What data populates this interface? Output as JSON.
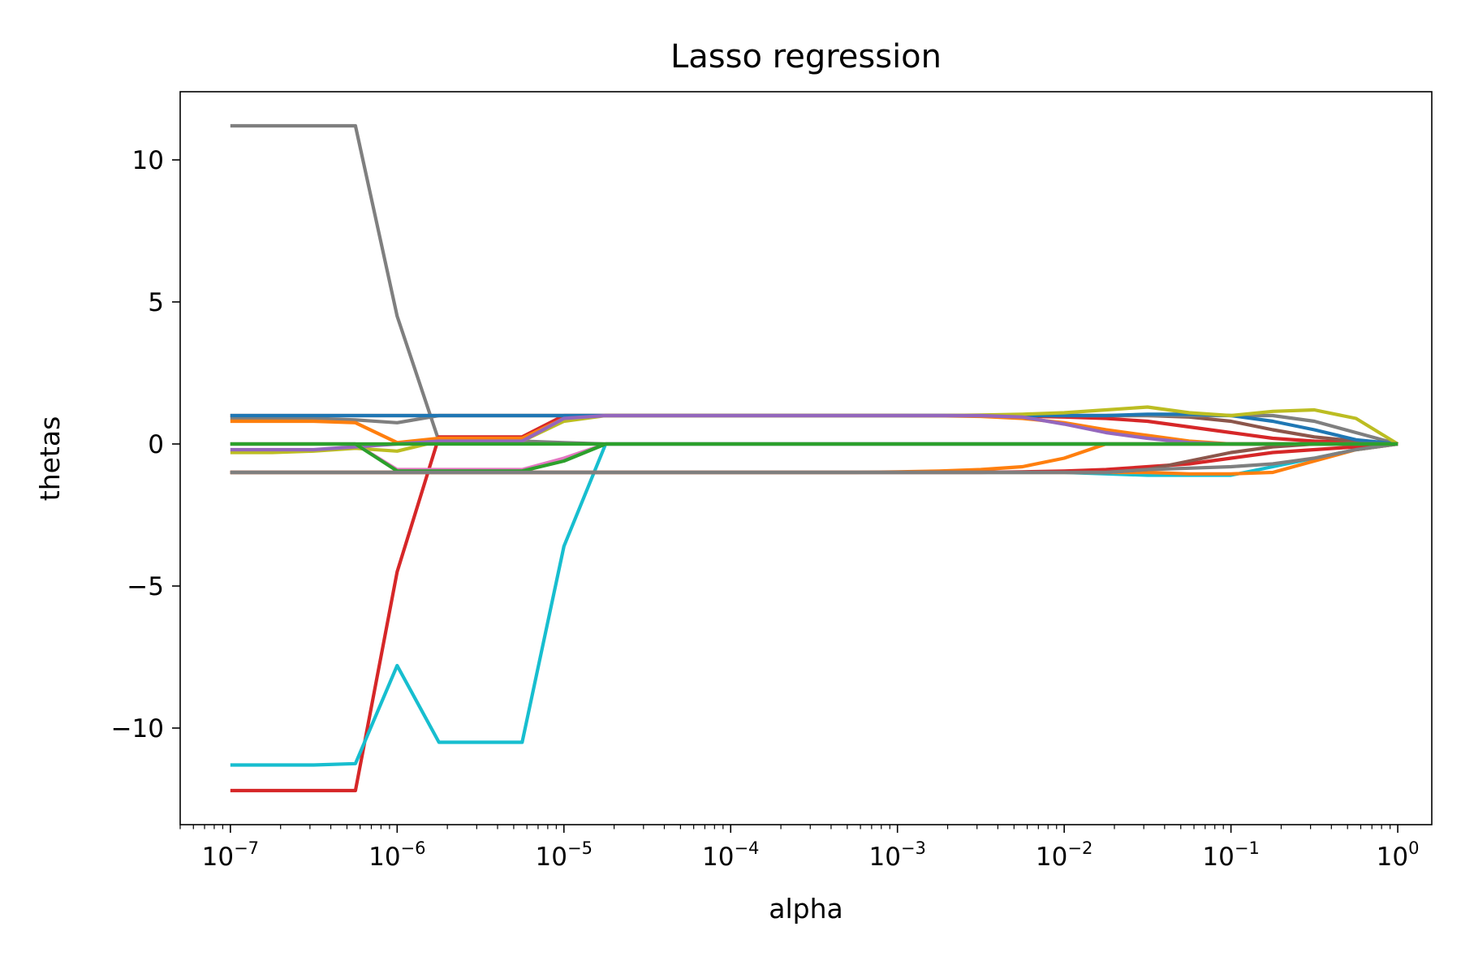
{
  "chart_data": {
    "type": "line",
    "title": "Lasso regression",
    "xlabel": "alpha",
    "ylabel": "thetas",
    "xscale": "log",
    "xlim": [
      5e-08,
      1.6
    ],
    "ylim": [
      -13.4,
      12.4
    ],
    "grid": false,
    "x_ticks": [
      {
        "value": 1e-07,
        "base": "10",
        "exp": "−7"
      },
      {
        "value": 1e-06,
        "base": "10",
        "exp": "−6"
      },
      {
        "value": 1e-05,
        "base": "10",
        "exp": "−5"
      },
      {
        "value": 0.0001,
        "base": "10",
        "exp": "−4"
      },
      {
        "value": 0.001,
        "base": "10",
        "exp": "−3"
      },
      {
        "value": 0.01,
        "base": "10",
        "exp": "−2"
      },
      {
        "value": 0.1,
        "base": "10",
        "exp": "−1"
      },
      {
        "value": 1,
        "base": "10",
        "exp": "0"
      }
    ],
    "y_ticks": [
      {
        "value": 10,
        "label": "10"
      },
      {
        "value": 5,
        "label": "5"
      },
      {
        "value": 0,
        "label": "0"
      },
      {
        "value": -5,
        "label": "−5"
      },
      {
        "value": -10,
        "label": "−10"
      }
    ],
    "x": [
      1e-07,
      1.78e-07,
      3.16e-07,
      5.62e-07,
      1e-06,
      1.78e-06,
      3.16e-06,
      5.62e-06,
      1e-05,
      1.78e-05,
      3.16e-05,
      5.62e-05,
      0.0001,
      0.000178,
      0.000316,
      0.000562,
      0.001,
      0.00178,
      0.00316,
      0.00562,
      0.01,
      0.0178,
      0.0316,
      0.0562,
      0.1,
      0.178,
      0.316,
      0.562,
      1
    ],
    "series": [
      {
        "color": "#7f7f7f",
        "values": [
          11.2,
          11.2,
          11.2,
          11.2,
          4.5,
          0.1,
          0.1,
          0.1,
          0.05,
          0,
          0,
          0,
          0,
          0,
          0,
          0,
          0,
          0,
          0,
          0,
          0,
          0,
          0,
          0,
          0,
          0,
          0,
          0,
          0
        ]
      },
      {
        "color": "#d62728",
        "values": [
          -12.2,
          -12.2,
          -12.2,
          -12.2,
          -4.5,
          0.25,
          0.25,
          0.25,
          1.0,
          1.0,
          1.0,
          1.0,
          1.0,
          1.0,
          1.0,
          1.0,
          1.0,
          1.0,
          1.0,
          0.98,
          0.95,
          0.9,
          0.8,
          0.6,
          0.4,
          0.2,
          0.1,
          0.05,
          0
        ]
      },
      {
        "color": "#17becf",
        "values": [
          -11.3,
          -11.3,
          -11.3,
          -11.25,
          -7.8,
          -10.5,
          -10.5,
          -10.5,
          -3.6,
          0,
          0,
          0,
          0,
          0,
          0,
          0,
          0,
          0,
          0,
          0,
          0,
          0,
          0,
          0,
          0,
          0,
          0,
          0,
          0
        ]
      },
      {
        "color": "#8c564b",
        "values": [
          1.0,
          1.0,
          1.0,
          1.0,
          1.0,
          1.0,
          1.0,
          1.0,
          1.0,
          1.0,
          1.0,
          1.0,
          1.0,
          1.0,
          1.0,
          1.0,
          1.0,
          1.0,
          1.0,
          1.0,
          1.0,
          1.0,
          1.0,
          0.95,
          0.8,
          0.5,
          0.25,
          0.1,
          0
        ]
      },
      {
        "color": "#7f7f7f",
        "values": [
          0.9,
          0.9,
          0.9,
          0.85,
          0.75,
          1.0,
          1.0,
          1.0,
          1.0,
          1.0,
          1.0,
          1.0,
          1.0,
          1.0,
          1.0,
          1.0,
          1.0,
          1.0,
          1.0,
          1.0,
          1.0,
          1.0,
          1.0,
          1.0,
          1.0,
          1.0,
          0.8,
          0.4,
          0
        ]
      },
      {
        "color": "#ff7f0e",
        "values": [
          0.8,
          0.8,
          0.8,
          0.75,
          0.05,
          0.2,
          0.2,
          0.2,
          0.9,
          1.0,
          1.0,
          1.0,
          1.0,
          1.0,
          1.0,
          1.0,
          1.0,
          0.99,
          0.97,
          0.9,
          0.75,
          0.5,
          0.3,
          0.1,
          0,
          0,
          0,
          0,
          0
        ]
      },
      {
        "color": "#1f77b4",
        "values": [
          1.0,
          1.0,
          1.0,
          1.0,
          1.0,
          1.0,
          1.0,
          1.0,
          1.0,
          1.0,
          1.0,
          1.0,
          1.0,
          1.0,
          1.0,
          1.0,
          1.0,
          1.0,
          1.0,
          1.0,
          1.0,
          1.0,
          1.05,
          1.05,
          1.0,
          0.8,
          0.5,
          0.15,
          0
        ]
      },
      {
        "color": "#bcbd22",
        "values": [
          -0.3,
          -0.3,
          -0.25,
          -0.15,
          -0.25,
          0.1,
          0.1,
          0.1,
          0.8,
          1.0,
          1.0,
          1.0,
          1.0,
          1.0,
          1.0,
          1.0,
          1.0,
          1.0,
          1.02,
          1.05,
          1.1,
          1.2,
          1.3,
          1.1,
          1.0,
          1.15,
          1.2,
          0.9,
          0
        ]
      },
      {
        "color": "#9467bd",
        "values": [
          -0.2,
          -0.2,
          -0.2,
          -0.1,
          0.0,
          0.1,
          0.1,
          0.1,
          0.9,
          1.0,
          1.0,
          1.0,
          1.0,
          1.0,
          1.0,
          1.0,
          1.0,
          1.0,
          1.0,
          0.95,
          0.7,
          0.4,
          0.2,
          0.05,
          0,
          0,
          0,
          0,
          0
        ]
      },
      {
        "color": "#ff7f0e",
        "values": [
          -1.0,
          -1.0,
          -1.0,
          -1.0,
          -1.0,
          -1.0,
          -1.0,
          -1.0,
          -1.0,
          -1.0,
          -1.0,
          -1.0,
          -1.0,
          -1.0,
          -1.0,
          -1.0,
          -0.98,
          -0.95,
          -0.9,
          -0.8,
          -0.5,
          0.0,
          0.0,
          0,
          0,
          0,
          0,
          0,
          0
        ]
      },
      {
        "color": "#17becf",
        "values": [
          -1.0,
          -1.0,
          -1.0,
          -1.0,
          -1.0,
          -1.0,
          -1.0,
          -1.0,
          -1.0,
          -1.0,
          -1.0,
          -1.0,
          -1.0,
          -1.0,
          -1.0,
          -1.0,
          -1.0,
          -1.0,
          -1.0,
          -1.0,
          -1.0,
          -1.05,
          -1.1,
          -1.1,
          -1.1,
          -0.8,
          -0.5,
          -0.2,
          0
        ]
      },
      {
        "color": "#ff7f0e",
        "values": [
          -1.0,
          -1.0,
          -1.0,
          -1.0,
          -1.0,
          -1.0,
          -1.0,
          -1.0,
          -1.0,
          -1.0,
          -1.0,
          -1.0,
          -1.0,
          -1.0,
          -1.0,
          -1.0,
          -1.0,
          -1.0,
          -1.0,
          -1.0,
          -1.0,
          -1.0,
          -1.0,
          -1.05,
          -1.05,
          -1.0,
          -0.6,
          -0.2,
          0
        ]
      },
      {
        "color": "#d62728",
        "values": [
          -1.0,
          -1.0,
          -1.0,
          -1.0,
          -1.0,
          -1.0,
          -1.0,
          -1.0,
          -1.0,
          -1.0,
          -1.0,
          -1.0,
          -1.0,
          -1.0,
          -1.0,
          -1.0,
          -1.0,
          -1.0,
          -1.0,
          -0.98,
          -0.95,
          -0.9,
          -0.8,
          -0.7,
          -0.5,
          -0.3,
          -0.2,
          -0.1,
          0
        ]
      },
      {
        "color": "#8c564b",
        "values": [
          -1.0,
          -1.0,
          -1.0,
          -1.0,
          -1.0,
          -1.0,
          -1.0,
          -1.0,
          -1.0,
          -1.0,
          -1.0,
          -1.0,
          -1.0,
          -1.0,
          -1.0,
          -1.0,
          -1.0,
          -1.0,
          -1.0,
          -1.0,
          -1.0,
          -1.0,
          -0.9,
          -0.6,
          -0.3,
          -0.1,
          0,
          0,
          0
        ]
      },
      {
        "color": "#e377c2",
        "values": [
          0.0,
          0.0,
          0.0,
          0.0,
          -0.9,
          -0.9,
          -0.9,
          -0.9,
          -0.5,
          0.0,
          0,
          0,
          0,
          0,
          0,
          0,
          0,
          0,
          0,
          0,
          0,
          0,
          0,
          0,
          0,
          0,
          0,
          0,
          0
        ]
      },
      {
        "color": "#2ca02c",
        "values": [
          0.0,
          0.0,
          0.0,
          0.0,
          -0.95,
          -0.95,
          -0.95,
          -0.95,
          -0.6,
          0.0,
          0,
          0,
          0,
          0,
          0,
          0,
          0,
          0,
          0,
          0,
          0,
          0,
          0,
          0,
          0,
          0,
          0,
          0,
          0
        ]
      },
      {
        "color": "#7f7f7f",
        "values": [
          -1.0,
          -1.0,
          -1.0,
          -1.0,
          -1.0,
          -1.0,
          -1.0,
          -1.0,
          -1.0,
          -1.0,
          -1.0,
          -1.0,
          -1.0,
          -1.0,
          -1.0,
          -1.0,
          -1.0,
          -1.0,
          -1.0,
          -1.0,
          -1.0,
          -1.0,
          -0.9,
          -0.85,
          -0.8,
          -0.7,
          -0.5,
          -0.2,
          0
        ]
      },
      {
        "color": "#2ca02c",
        "values": [
          0,
          0,
          0,
          0,
          0,
          0,
          0,
          0,
          0,
          0,
          0,
          0,
          0,
          0,
          0,
          0,
          0,
          0,
          0,
          0,
          0,
          0,
          0,
          0,
          0,
          0,
          0,
          0,
          0
        ]
      }
    ]
  }
}
